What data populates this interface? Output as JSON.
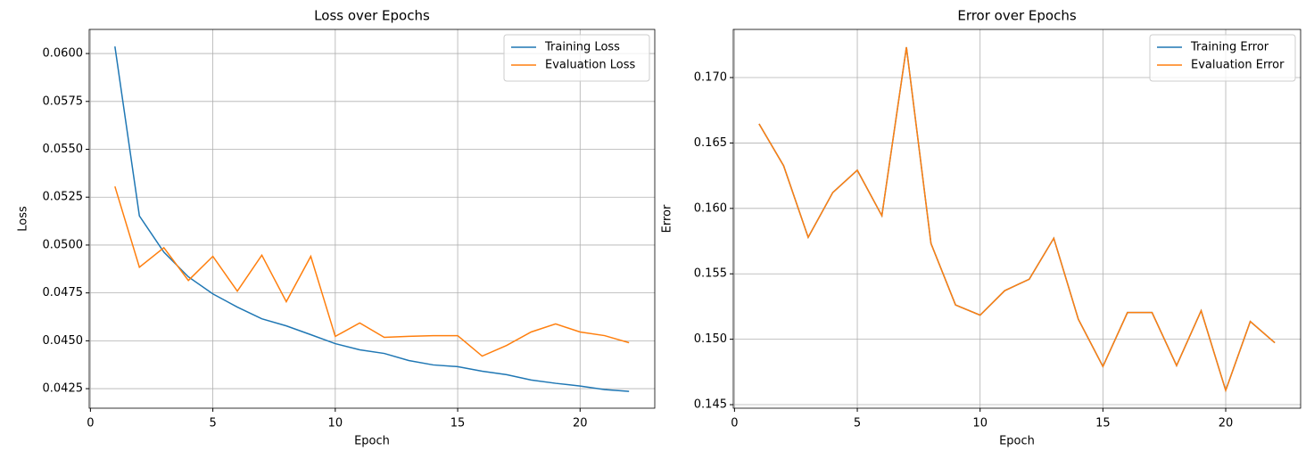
{
  "chart_data": [
    {
      "type": "line",
      "title": "Loss over Epochs",
      "xlabel": "Epoch",
      "ylabel": "Loss",
      "x": [
        1,
        2,
        3,
        4,
        5,
        6,
        7,
        8,
        9,
        10,
        11,
        12,
        13,
        14,
        15,
        16,
        17,
        18,
        19,
        20,
        21,
        22
      ],
      "series": [
        {
          "name": "Training Loss",
          "color": "#1f77b4",
          "values": [
            0.06037,
            0.05152,
            0.04963,
            0.04834,
            0.04745,
            0.04676,
            0.04615,
            0.04578,
            0.04532,
            0.04485,
            0.04453,
            0.04434,
            0.04397,
            0.04374,
            0.04365,
            0.04341,
            0.04323,
            0.04295,
            0.04278,
            0.04264,
            0.04245,
            0.04236
          ]
        },
        {
          "name": "Evaluation Loss",
          "color": "#ff7f0e",
          "values": [
            0.05306,
            0.04884,
            0.04986,
            0.04815,
            0.04941,
            0.04759,
            0.04947,
            0.04704,
            0.04941,
            0.04523,
            0.04593,
            0.04518,
            0.04523,
            0.04527,
            0.04527,
            0.0442,
            0.04476,
            0.04546,
            0.04588,
            0.04546,
            0.04527,
            0.0449
          ]
        }
      ],
      "xlim": [
        -0.05,
        23.05
      ],
      "ylim": [
        0.04148,
        0.06126
      ],
      "xticks": [
        0,
        5,
        10,
        15,
        20
      ],
      "yticks": [
        0.0425,
        {
          "value": 0.045,
          "label": "0.0450"
        },
        0.0475,
        {
          "value": 0.05,
          "label": "0.0500"
        },
        0.0525,
        {
          "value": 0.055,
          "label": "0.0550"
        },
        0.0575,
        {
          "value": 0.06,
          "label": "0.0600"
        }
      ],
      "grid": true,
      "legend": "upper-right"
    },
    {
      "type": "line",
      "title": "Error over Epochs",
      "xlabel": "Epoch",
      "ylabel": "Error",
      "x": [
        1,
        2,
        3,
        4,
        5,
        6,
        7,
        8,
        9,
        10,
        11,
        12,
        13,
        14,
        15,
        16,
        17,
        18,
        19,
        20,
        21,
        22
      ],
      "series": [
        {
          "name": "Training Error",
          "color": "#1f77b4",
          "values": [
            0.16646,
            0.16326,
            0.15779,
            0.16121,
            0.16292,
            0.15944,
            0.17232,
            0.15732,
            0.15262,
            0.15184,
            0.15371,
            0.15459,
            0.15772,
            0.15153,
            0.14792,
            0.15204,
            0.15204,
            0.14799,
            0.15218,
            0.14609,
            0.15136,
            0.14973
          ]
        },
        {
          "name": "Evaluation Error",
          "color": "#ff7f0e",
          "values": [
            0.16646,
            0.16326,
            0.15779,
            0.16121,
            0.16292,
            0.15944,
            0.17232,
            0.15732,
            0.15262,
            0.15184,
            0.15371,
            0.15459,
            0.15772,
            0.15153,
            0.14792,
            0.15204,
            0.15204,
            0.14799,
            0.15218,
            0.14609,
            0.15136,
            0.14973
          ]
        }
      ],
      "xlim": [
        -0.05,
        23.05
      ],
      "ylim": [
        0.14473,
        0.17368
      ],
      "xticks": [
        0,
        5,
        10,
        15,
        20
      ],
      "yticks": [
        0.145,
        {
          "value": 0.15,
          "label": "0.150"
        },
        0.155,
        {
          "value": 0.16,
          "label": "0.160"
        },
        0.165,
        {
          "value": 0.17,
          "label": "0.170"
        }
      ],
      "grid": true,
      "legend": "upper-right"
    }
  ]
}
